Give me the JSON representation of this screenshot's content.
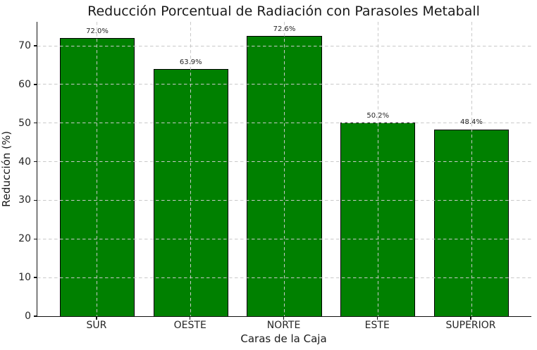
{
  "title": "Reducción Porcentual de Radiación con Parasoles Metaball",
  "chart_data": {
    "type": "bar",
    "title": "Reducción Porcentual de Radiación con Parasoles Metaball",
    "xlabel": "Caras de la Caja",
    "ylabel": "Reducción (%)",
    "categories": [
      "SUR",
      "OESTE",
      "NORTE",
      "ESTE",
      "SUPERIOR"
    ],
    "values": [
      72.0,
      63.9,
      72.6,
      50.2,
      48.4
    ],
    "bar_labels": [
      "72.0%",
      "63.9%",
      "72.6%",
      "50.2%",
      "48.4%"
    ],
    "yticks": [
      0,
      10,
      20,
      30,
      40,
      50,
      60,
      70
    ],
    "ylim": [
      0,
      76.2
    ],
    "grid": true,
    "grid_style": "dashed",
    "grid_on_top": true,
    "legend": "none",
    "bar_color": "#008000",
    "bar_edge_color": "#000000",
    "background_color": "#ffffff"
  }
}
